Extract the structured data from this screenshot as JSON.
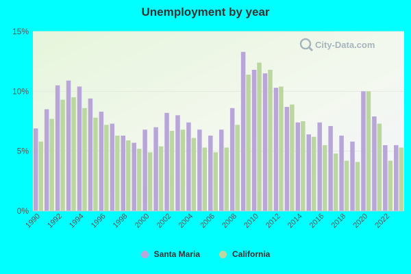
{
  "title": "Unemployment by year",
  "watermark": "City-Data.com",
  "colors": {
    "santa_maria": "#b9a6d9",
    "california": "#bcd6a2",
    "background": "#00ffff"
  },
  "chart_data": {
    "type": "bar",
    "title": "Unemployment by year",
    "xlabel": "",
    "ylabel": "",
    "ylim": [
      0,
      15
    ],
    "yticks": [
      "0%",
      "5%",
      "10%",
      "15%"
    ],
    "x_tick_labels": [
      "1990",
      "1992",
      "1994",
      "1996",
      "1998",
      "2000",
      "2002",
      "2004",
      "2006",
      "2008",
      "2010",
      "2012",
      "2014",
      "2016",
      "2018",
      "2020",
      "2022"
    ],
    "grid": true,
    "legend_position": "bottom",
    "categories": [
      "1990",
      "1991",
      "1992",
      "1993",
      "1994",
      "1995",
      "1996",
      "1997",
      "1998",
      "1999",
      "2000",
      "2001",
      "2002",
      "2003",
      "2004",
      "2005",
      "2006",
      "2007",
      "2008",
      "2009",
      "2010",
      "2011",
      "2012",
      "2013",
      "2014",
      "2015",
      "2016",
      "2017",
      "2018",
      "2019",
      "2020",
      "2021",
      "2022",
      "2023"
    ],
    "series": [
      {
        "name": "Santa Maria",
        "values": [
          6.9,
          8.5,
          10.5,
          10.9,
          10.4,
          9.4,
          8.3,
          7.3,
          6.3,
          5.7,
          6.8,
          7.0,
          8.2,
          8.0,
          7.4,
          6.8,
          6.3,
          6.8,
          8.6,
          13.3,
          11.8,
          11.5,
          10.3,
          8.7,
          7.4,
          6.4,
          7.4,
          7.1,
          6.3,
          5.8,
          10.0,
          7.9,
          5.5,
          5.5
        ]
      },
      {
        "name": "California",
        "values": [
          5.8,
          7.7,
          9.3,
          9.5,
          8.6,
          7.8,
          7.2,
          6.3,
          5.9,
          5.2,
          4.9,
          5.4,
          6.7,
          6.8,
          6.1,
          5.3,
          4.9,
          5.3,
          7.2,
          11.4,
          12.4,
          11.8,
          10.4,
          8.9,
          7.5,
          6.2,
          5.5,
          4.8,
          4.2,
          4.1,
          10.0,
          7.3,
          4.2,
          5.3
        ]
      }
    ]
  }
}
